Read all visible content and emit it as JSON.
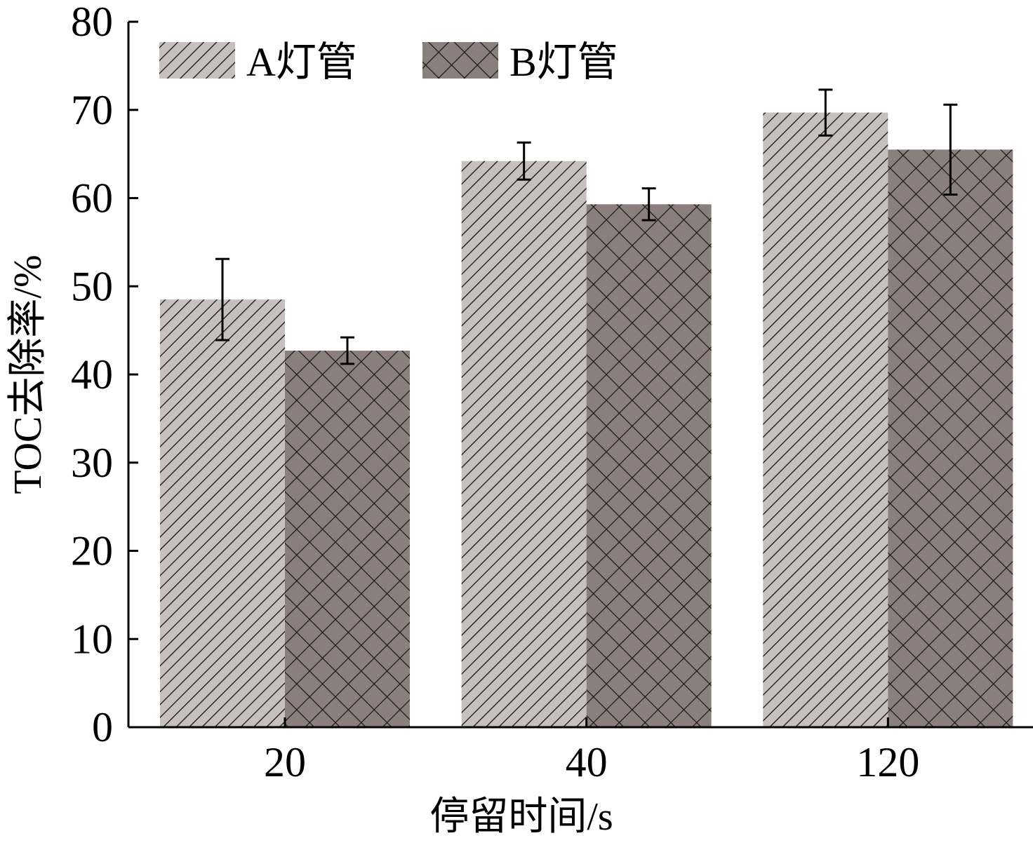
{
  "chart_data": {
    "type": "bar",
    "title": "",
    "xlabel": "停留时间/s",
    "ylabel": "TOC去除率/%",
    "categories": [
      "20",
      "40",
      "120"
    ],
    "ylim": [
      0,
      80
    ],
    "yticks": [
      0,
      10,
      20,
      30,
      40,
      50,
      60,
      70,
      80
    ],
    "grid": false,
    "legend_position": "top-left",
    "series": [
      {
        "name": "A灯管",
        "values": [
          48.5,
          64.2,
          69.7
        ],
        "errors": [
          4.6,
          2.1,
          2.6
        ],
        "color": "#c8c0bf",
        "pattern": "diagonal-hatch"
      },
      {
        "name": "B灯管",
        "values": [
          42.7,
          59.3,
          65.5
        ],
        "errors": [
          1.5,
          1.8,
          5.1
        ],
        "color": "#8b7f7d",
        "pattern": "crosshatch"
      }
    ]
  }
}
